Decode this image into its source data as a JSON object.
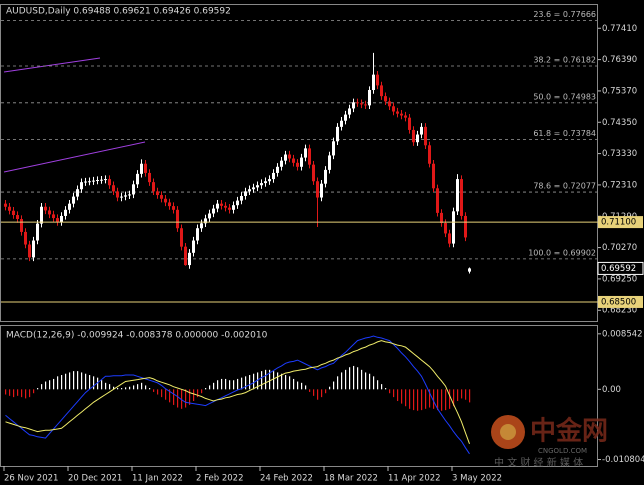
{
  "chart_data": [
    {
      "type": "candlestick",
      "title": "AUDUSD,Daily  0.69488 0.69621 0.69426 0.69592",
      "categories": [
        "26 Nov 2021",
        null,
        null,
        null,
        null,
        null,
        null,
        null,
        null,
        null,
        null,
        null,
        null,
        null,
        null,
        null,
        "20 Dec 2021",
        null,
        null,
        null,
        null,
        null,
        null,
        null,
        null,
        null,
        null,
        null,
        null,
        null,
        null,
        null,
        "11 Jan 2022",
        null,
        null,
        null,
        null,
        null,
        null,
        null,
        null,
        null,
        null,
        null,
        null,
        null,
        null,
        null,
        "2 Feb 2022",
        null,
        null,
        null,
        null,
        null,
        null,
        null,
        null,
        null,
        null,
        null,
        null,
        null,
        null,
        null,
        "24 Feb 2022",
        null,
        null,
        null,
        null,
        null,
        null,
        null,
        null,
        null,
        null,
        null,
        null,
        null,
        null,
        null,
        "18 Mar 2022",
        null,
        null,
        null,
        null,
        null,
        null,
        null,
        null,
        null,
        null,
        null,
        null,
        null,
        null,
        null,
        "11 Apr 2022",
        null,
        null,
        null,
        null,
        null,
        null,
        null,
        null,
        null,
        null,
        null,
        null,
        null,
        null,
        null,
        "3 May 2022",
        null,
        null,
        null,
        null
      ],
      "open": [
        0.717,
        0.716,
        0.7147,
        0.7133,
        0.712,
        0.7078,
        0.7037,
        0.6995,
        0.705,
        0.7105,
        0.716,
        0.7148,
        0.7135,
        0.7123,
        0.711,
        0.713,
        0.715,
        0.717,
        0.7193,
        0.7217,
        0.724,
        0.7242,
        0.7243,
        0.7245,
        0.7247,
        0.7248,
        0.725,
        0.723,
        0.721,
        0.719,
        0.7193,
        0.7197,
        0.72,
        0.7233,
        0.7267,
        0.73,
        0.727,
        0.724,
        0.721,
        0.7198,
        0.7186,
        0.7174,
        0.7162,
        0.715,
        0.709,
        0.703,
        0.697,
        0.701,
        0.705,
        0.709,
        0.7106,
        0.7122,
        0.7138,
        0.7154,
        0.717,
        0.7163,
        0.7157,
        0.715,
        0.7165,
        0.718,
        0.7195,
        0.721,
        0.7217,
        0.7223,
        0.723,
        0.7237,
        0.7243,
        0.725,
        0.727,
        0.729,
        0.731,
        0.733,
        0.7317,
        0.7303,
        0.729,
        0.732,
        0.735,
        0.7297,
        0.7243,
        0.719,
        0.7235,
        0.728,
        0.7327,
        0.7373,
        0.742,
        0.744,
        0.746,
        0.748,
        0.75,
        0.7497,
        0.7493,
        0.749,
        0.754,
        0.759,
        0.7555,
        0.752,
        0.7503,
        0.7487,
        0.747,
        0.7463,
        0.7457,
        0.745,
        0.741,
        0.737,
        0.7395,
        0.742,
        0.736,
        0.73,
        0.722,
        0.714,
        0.7107,
        0.7073,
        0.704,
        0.7145,
        0.725,
        0.713,
        0.69488
      ],
      "high": [
        0.7182,
        0.7172,
        0.7159,
        0.7145,
        0.7132,
        0.709,
        0.7049,
        0.7062,
        0.7117,
        0.7172,
        0.7172,
        0.716,
        0.7147,
        0.7135,
        0.7142,
        0.7162,
        0.7182,
        0.7205,
        0.7229,
        0.7252,
        0.7254,
        0.7255,
        0.7257,
        0.7259,
        0.726,
        0.7262,
        0.7262,
        0.7242,
        0.7222,
        0.7205,
        0.7209,
        0.7212,
        0.7245,
        0.7279,
        0.7314,
        0.7312,
        0.7282,
        0.7252,
        0.7222,
        0.721,
        0.7198,
        0.7186,
        0.7174,
        0.7162,
        0.7102,
        0.7042,
        0.7022,
        0.7062,
        0.7102,
        0.7118,
        0.7134,
        0.715,
        0.7166,
        0.7182,
        0.7182,
        0.7175,
        0.7169,
        0.7177,
        0.7192,
        0.7207,
        0.7222,
        0.7229,
        0.7235,
        0.7242,
        0.7249,
        0.7255,
        0.7262,
        0.7282,
        0.7302,
        0.7322,
        0.7342,
        0.7342,
        0.7329,
        0.7315,
        0.7332,
        0.7362,
        0.7362,
        0.7309,
        0.7255,
        0.7247,
        0.7292,
        0.7339,
        0.7385,
        0.7432,
        0.7452,
        0.7472,
        0.7492,
        0.7512,
        0.7512,
        0.7509,
        0.7505,
        0.7552,
        0.7661,
        0.7602,
        0.7567,
        0.7532,
        0.7515,
        0.7499,
        0.7482,
        0.7475,
        0.7469,
        0.7462,
        0.7422,
        0.7407,
        0.7432,
        0.7432,
        0.7372,
        0.7312,
        0.7232,
        0.7152,
        0.7119,
        0.7085,
        0.7157,
        0.7266,
        0.7262,
        0.7142,
        0.69621
      ],
      "low": [
        0.7148,
        0.7135,
        0.7121,
        0.7108,
        0.7066,
        0.7025,
        0.6983,
        0.6983,
        0.7038,
        0.7093,
        0.7136,
        0.7123,
        0.7111,
        0.7098,
        0.7098,
        0.7118,
        0.7138,
        0.7158,
        0.7181,
        0.7205,
        0.7228,
        0.723,
        0.7231,
        0.7233,
        0.7235,
        0.7236,
        0.7218,
        0.7198,
        0.7178,
        0.7178,
        0.7181,
        0.7185,
        0.7188,
        0.7221,
        0.7255,
        0.7258,
        0.7228,
        0.7198,
        0.7186,
        0.7174,
        0.7162,
        0.715,
        0.7138,
        0.7078,
        0.7018,
        0.6968,
        0.6958,
        0.6998,
        0.7038,
        0.7078,
        0.7094,
        0.711,
        0.7126,
        0.7142,
        0.7151,
        0.7145,
        0.7138,
        0.7138,
        0.7153,
        0.7168,
        0.7183,
        0.7198,
        0.7205,
        0.7211,
        0.7218,
        0.7225,
        0.7231,
        0.7238,
        0.7258,
        0.7278,
        0.7298,
        0.7305,
        0.7291,
        0.7278,
        0.7278,
        0.7308,
        0.7285,
        0.7231,
        0.7094,
        0.7178,
        0.7223,
        0.7268,
        0.7315,
        0.7361,
        0.7408,
        0.7428,
        0.7448,
        0.7468,
        0.7485,
        0.7481,
        0.7478,
        0.7478,
        0.7528,
        0.7543,
        0.7508,
        0.7491,
        0.7475,
        0.7458,
        0.7451,
        0.7445,
        0.7438,
        0.7398,
        0.7358,
        0.7358,
        0.7383,
        0.7348,
        0.7288,
        0.7208,
        0.7128,
        0.7095,
        0.7061,
        0.7028,
        0.7028,
        0.7133,
        0.7118,
        0.7048,
        0.69426
      ],
      "close": [
        0.716,
        0.7147,
        0.7133,
        0.712,
        0.7078,
        0.7037,
        0.6995,
        0.705,
        0.7105,
        0.716,
        0.7148,
        0.7135,
        0.7123,
        0.711,
        0.713,
        0.715,
        0.717,
        0.7193,
        0.7217,
        0.724,
        0.7242,
        0.7243,
        0.7245,
        0.7247,
        0.7248,
        0.725,
        0.723,
        0.721,
        0.719,
        0.7193,
        0.7197,
        0.72,
        0.7233,
        0.7267,
        0.73,
        0.727,
        0.724,
        0.721,
        0.7198,
        0.7186,
        0.7174,
        0.7162,
        0.715,
        0.709,
        0.703,
        0.697,
        0.701,
        0.705,
        0.709,
        0.7106,
        0.7122,
        0.7138,
        0.7154,
        0.717,
        0.7163,
        0.7157,
        0.715,
        0.7165,
        0.718,
        0.7195,
        0.721,
        0.7217,
        0.7223,
        0.723,
        0.7237,
        0.7243,
        0.725,
        0.727,
        0.729,
        0.731,
        0.733,
        0.7317,
        0.7303,
        0.729,
        0.732,
        0.735,
        0.7297,
        0.7243,
        0.719,
        0.7235,
        0.728,
        0.7327,
        0.7373,
        0.742,
        0.744,
        0.746,
        0.748,
        0.75,
        0.7497,
        0.7493,
        0.749,
        0.754,
        0.759,
        0.7555,
        0.752,
        0.7503,
        0.7487,
        0.747,
        0.7463,
        0.7457,
        0.745,
        0.741,
        0.737,
        0.7395,
        0.742,
        0.736,
        0.73,
        0.722,
        0.714,
        0.7107,
        0.7073,
        0.704,
        0.7145,
        0.725,
        0.713,
        0.706,
        0.69592
      ],
      "up_color": "#ffffff",
      "down_color": "#e01818",
      "ylim": [
        0.6788,
        0.782
      ],
      "yticks": [
        {
          "value": 0.7741,
          "label": "0.77410"
        },
        {
          "value": 0.7639,
          "label": "0.76390"
        },
        {
          "value": 0.7537,
          "label": "0.75370"
        },
        {
          "value": 0.7435,
          "label": "0.74350"
        },
        {
          "value": 0.7333,
          "label": "0.73330"
        },
        {
          "value": 0.7231,
          "label": "0.72310"
        },
        {
          "value": 0.7129,
          "label": "0.71290"
        },
        {
          "value": 0.7027,
          "label": "0.70270"
        },
        {
          "value": 0.6925,
          "label": "0.69250"
        },
        {
          "value": 0.6823,
          "label": "0.68230"
        }
      ],
      "fib_levels": [
        {
          "value": 0.77666,
          "label": "23.6 = 0.77666"
        },
        {
          "value": 0.76182,
          "label": "38.2 = 0.76182"
        },
        {
          "value": 0.74983,
          "label": "50.0 = 0.74983"
        },
        {
          "value": 0.73784,
          "label": "61.8 = 0.73784"
        },
        {
          "value": 0.72077,
          "label": "78.6 = 0.72077"
        },
        {
          "value": 0.69902,
          "label": "100.0 = 0.69902"
        }
      ],
      "price_lines": [
        {
          "value": 0.711,
          "label": "0.71100",
          "color": "#e8d27a"
        },
        {
          "value": 0.685,
          "label": "0.68500",
          "color": "#e8d27a"
        }
      ]
    },
    {
      "type": "macd",
      "title": "MACD(12,26,9) -0.009924 -0.008378 0.000000 -0.002010",
      "histogram": {
        "up_color": "#ffffff",
        "down_color": "#e01818",
        "values": [
          -0.0008,
          -0.001,
          -0.0012,
          -0.001,
          -0.0012,
          -0.0014,
          -0.0012,
          -0.0006,
          0.0002,
          0.0008,
          0.0012,
          0.0014,
          0.0016,
          0.002,
          0.0022,
          0.0024,
          0.0026,
          0.0028,
          0.0028,
          0.0026,
          0.0024,
          0.0022,
          0.002,
          0.0018,
          0.0014,
          0.001,
          0.0008,
          0.0004,
          0.0002,
          0.0002,
          0.0003,
          0.0004,
          0.0006,
          0.0008,
          0.001,
          0.0006,
          0.0002,
          -0.0004,
          -0.0008,
          -0.0012,
          -0.0016,
          -0.002,
          -0.0024,
          -0.0028,
          -0.003,
          -0.0028,
          -0.0024,
          -0.0018,
          -0.0012,
          -0.0006,
          0.0002,
          0.0006,
          0.001,
          0.0014,
          0.0016,
          0.0016,
          0.0014,
          0.0014,
          0.0016,
          0.0018,
          0.002,
          0.0022,
          0.0024,
          0.0026,
          0.0028,
          0.003,
          0.003,
          0.0028,
          0.0026,
          0.0024,
          0.0022,
          0.002,
          0.0016,
          0.0012,
          0.001,
          0.0006,
          -0.0004,
          -0.001,
          -0.0016,
          -0.0012,
          -0.0006,
          0.0004,
          0.0012,
          0.002,
          0.0026,
          0.003,
          0.0034,
          0.0036,
          0.0034,
          0.003,
          0.0026,
          0.0024,
          0.002,
          0.0014,
          0.0008,
          0.0002,
          -0.0006,
          -0.0012,
          -0.0018,
          -0.0022,
          -0.0026,
          -0.003,
          -0.0032,
          -0.0033,
          -0.0032,
          -0.003,
          -0.0028,
          -0.003,
          -0.0032,
          -0.0033,
          -0.0032,
          -0.003,
          -0.0026,
          -0.0018,
          -0.0014,
          -0.0016,
          -0.00201
        ]
      },
      "series": [
        {
          "color": "#1c3cff",
          "values": [
            -0.004,
            -0.0045,
            -0.005,
            -0.0055,
            -0.006,
            -0.0065,
            -0.007,
            -0.0071,
            -0.0073,
            -0.0074,
            -0.0075,
            -0.0068,
            -0.0061,
            -0.0054,
            -0.0047,
            -0.004,
            -0.0033,
            -0.0026,
            -0.0019,
            -0.0012,
            -0.0005,
            0.0,
            0.0005,
            0.001,
            0.0015,
            0.002,
            0.002,
            0.0021,
            0.0021,
            0.0021,
            0.0022,
            0.0022,
            0.0022,
            0.002,
            0.0018,
            0.0016,
            0.0014,
            0.0012,
            0.001,
            0.0006,
            0.0001,
            -0.0003,
            -0.0007,
            -0.0011,
            -0.0016,
            -0.002,
            -0.0021,
            -0.0022,
            -0.0023,
            -0.0024,
            -0.0025,
            -0.0022,
            -0.0019,
            -0.0016,
            -0.0013,
            -0.001,
            -0.0007,
            -0.0004,
            -0.0001,
            0.0001,
            0.0004,
            0.0007,
            0.001,
            0.0014,
            0.0018,
            0.0021,
            0.0025,
            0.0029,
            0.0033,
            0.0036,
            0.004,
            0.0042,
            0.0043,
            0.0045,
            0.0042,
            0.0039,
            0.0036,
            0.0033,
            0.003,
            0.0033,
            0.0035,
            0.0038,
            0.004,
            0.0046,
            0.0052,
            0.0057,
            0.0063,
            0.0069,
            0.0075,
            0.0077,
            0.0079,
            0.008,
            0.0082,
            0.008,
            0.0079,
            0.0077,
            0.0075,
            0.0069,
            0.0063,
            0.0056,
            0.005,
            0.0043,
            0.0035,
            0.0028,
            0.002,
            0.0008,
            -0.0005,
            -0.0018,
            -0.003,
            -0.0039,
            -0.0048,
            -0.0056,
            -0.0065,
            -0.0073,
            -0.008,
            -0.009,
            -0.009924
          ]
        },
        {
          "color": "#f0ec6a",
          "values": [
            -0.005,
            -0.0052,
            -0.0054,
            -0.0056,
            -0.0058,
            -0.0059,
            -0.0061,
            -0.0063,
            -0.0065,
            -0.0064,
            -0.0063,
            -0.0063,
            -0.0062,
            -0.0061,
            -0.006,
            -0.0055,
            -0.005,
            -0.0045,
            -0.004,
            -0.0035,
            -0.003,
            -0.0025,
            -0.002,
            -0.0016,
            -0.0012,
            -0.0008,
            -0.0004,
            0.0,
            0.0004,
            0.0008,
            0.0012,
            0.0013,
            0.0014,
            0.0015,
            0.0016,
            0.0017,
            0.0018,
            0.0016,
            0.0013,
            0.0011,
            0.0009,
            0.0007,
            0.0004,
            0.0002,
            0.0,
            -0.0002,
            -0.0005,
            -0.0007,
            -0.0009,
            -0.0011,
            -0.0014,
            -0.0016,
            -0.0018,
            -0.0016,
            -0.0015,
            -0.0013,
            -0.0012,
            -0.001,
            -0.0008,
            -0.0007,
            -0.0005,
            -0.0002,
            0.0001,
            0.0004,
            0.0007,
            0.001,
            0.0013,
            0.0016,
            0.0019,
            0.0022,
            0.0025,
            0.0026,
            0.0028,
            0.0029,
            0.003,
            0.0031,
            0.0033,
            0.0034,
            0.0035,
            0.0038,
            0.004,
            0.0043,
            0.0045,
            0.0048,
            0.005,
            0.0053,
            0.0055,
            0.0058,
            0.006,
            0.0063,
            0.0065,
            0.0068,
            0.007,
            0.0073,
            0.0075,
            0.0073,
            0.0072,
            0.007,
            0.0068,
            0.0067,
            0.0065,
            0.006,
            0.0055,
            0.005,
            0.0045,
            0.004,
            0.0035,
            0.0028,
            0.002,
            0.0013,
            0.0005,
            -0.0009,
            -0.0023,
            -0.0036,
            -0.005,
            -0.0067,
            -0.008378
          ]
        }
      ],
      "ylim": [
        -0.0118,
        0.0099
      ],
      "yticks": [
        0.008542,
        {
          "value": 0,
          "label": "0.00"
        },
        -0.010804
      ]
    }
  ],
  "watermark": {
    "logo": "中金网",
    "site": "CNGOLD.COM",
    "tagline": "中 文 财 经 新 媒 体"
  }
}
